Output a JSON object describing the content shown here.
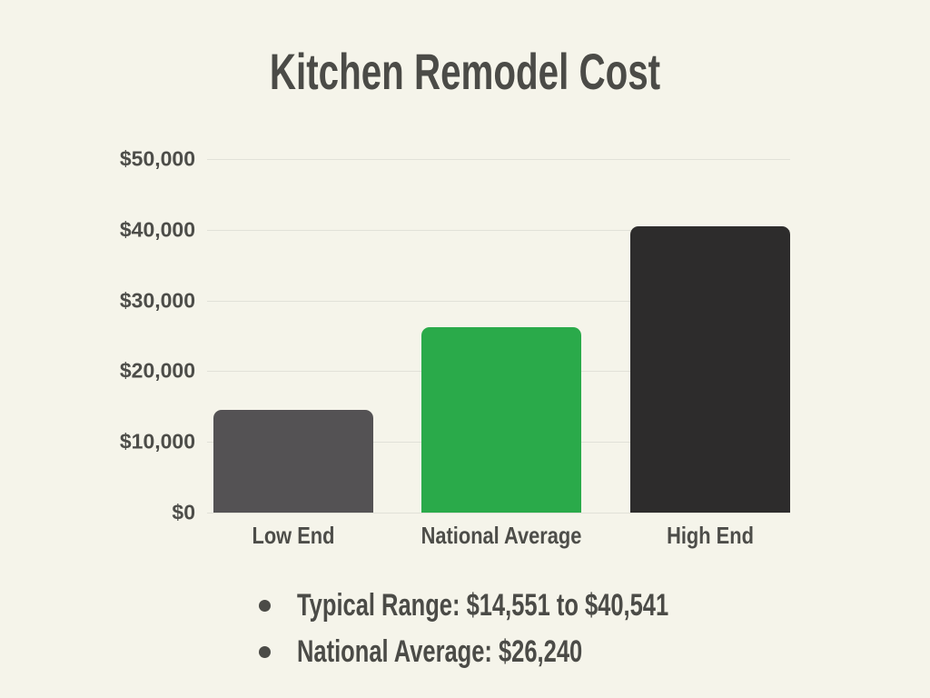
{
  "title": "Kitchen Remodel Cost",
  "chart_data": {
    "type": "bar",
    "title": "Kitchen Remodel Cost",
    "categories": [
      "Low End",
      "National Average",
      "High End"
    ],
    "values": [
      14551,
      26240,
      40541
    ],
    "bar_colors": [
      "#545254",
      "#2aaa4a",
      "#2d2c2c"
    ],
    "xlabel": "",
    "ylabel": "",
    "ylim": [
      0,
      50000
    ],
    "yticks": [
      {
        "value": 0,
        "label": "$0"
      },
      {
        "value": 10000,
        "label": "$10,000"
      },
      {
        "value": 20000,
        "label": "$20,000"
      },
      {
        "value": 30000,
        "label": "$30,000"
      },
      {
        "value": 40000,
        "label": "$40,000"
      },
      {
        "value": 50000,
        "label": "$50,000"
      }
    ],
    "grid": true,
    "legend": false
  },
  "notes": [
    "Typical Range: $14,551 to $40,541",
    "National Average: $26,240"
  ],
  "colors": {
    "background": "#f5f4ea",
    "text": "#4b4b47",
    "axis_label": "#4d4d49",
    "gridline": "#e1e1d8",
    "bar_low_end": "#545254",
    "bar_national_average": "#2aaa4a",
    "bar_high_end": "#2d2c2c"
  }
}
